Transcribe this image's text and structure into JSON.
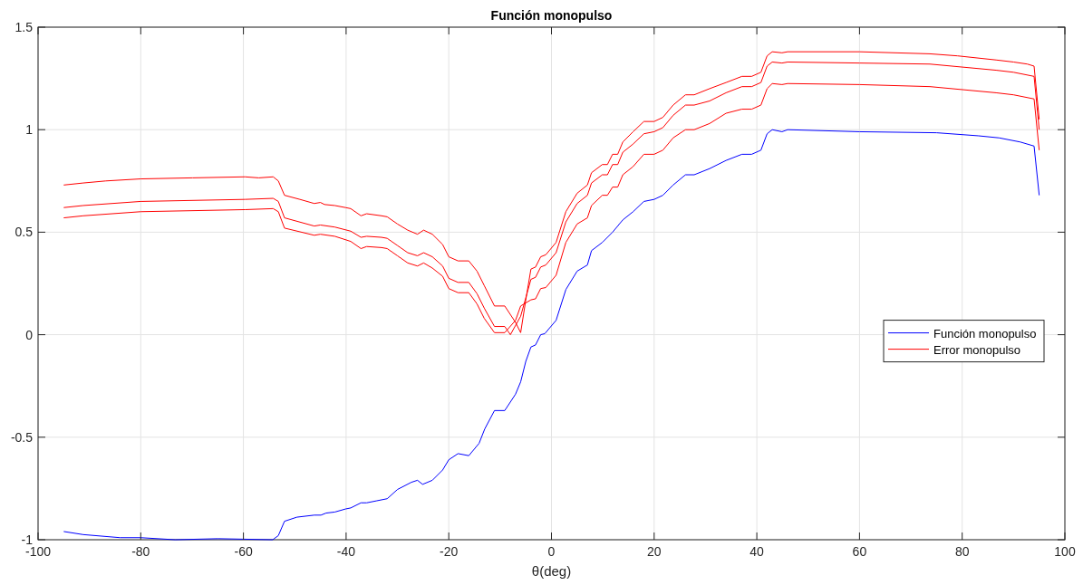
{
  "chart_data": {
    "type": "line",
    "title": "Función monopulso",
    "xlabel": "θ(deg)",
    "xlim": [
      -100,
      100
    ],
    "xticks": [
      -100,
      -80,
      -60,
      -40,
      -20,
      0,
      20,
      40,
      60,
      80,
      100
    ],
    "ylim": [
      -1,
      1.5
    ],
    "yticks": [
      -1,
      -0.5,
      0,
      0.5,
      1,
      1.5
    ],
    "grid": true,
    "legend": "right",
    "series": [
      {
        "name": "Función monopulso",
        "color": "#0000ff",
        "x": [
          -95,
          -91.2,
          -84,
          -80,
          -73.3,
          -65,
          -54.3,
          -53.2,
          -52,
          -49.6,
          -46.2,
          -44.9,
          -43.9,
          -42.2,
          -40.1,
          -39.1,
          -37.1,
          -36,
          -34,
          -32,
          -30,
          -27.3,
          -26.1,
          -25.1,
          -23.2,
          -21.2,
          -20,
          -18.2,
          -16.1,
          -14.1,
          -13,
          -11.1,
          -9.1,
          -7,
          -6,
          -5,
          -4,
          -3.1,
          -2.1,
          -1.3,
          0.9,
          2.8,
          5,
          7,
          7.8,
          9.9,
          11.9,
          13.9,
          15.9,
          18,
          20,
          21.7,
          23.7,
          26.1,
          27.8,
          30.8,
          34,
          37.1,
          39,
          40.8,
          42,
          43,
          44.9,
          46,
          60,
          75,
          83.2,
          87.2,
          91.3,
          94,
          95
        ],
        "values": [
          -0.96,
          -0.975,
          -0.99,
          -0.99,
          -1,
          -0.995,
          -1,
          -0.98,
          -0.91,
          -0.89,
          -0.88,
          -0.88,
          -0.87,
          -0.865,
          -0.85,
          -0.845,
          -0.82,
          -0.82,
          -0.81,
          -0.8,
          -0.755,
          -0.72,
          -0.71,
          -0.73,
          -0.71,
          -0.66,
          -0.61,
          -0.58,
          -0.59,
          -0.53,
          -0.46,
          -0.37,
          -0.37,
          -0.29,
          -0.23,
          -0.13,
          -0.06,
          -0.05,
          0,
          0.005,
          0.07,
          0.22,
          0.31,
          0.34,
          0.41,
          0.45,
          0.5,
          0.56,
          0.6,
          0.65,
          0.66,
          0.68,
          0.73,
          0.78,
          0.78,
          0.81,
          0.85,
          0.88,
          0.88,
          0.9,
          0.98,
          1,
          0.99,
          1,
          0.99,
          0.985,
          0.97,
          0.96,
          0.94,
          0.92,
          0.68
        ]
      },
      {
        "name": "Error monopulso",
        "color": "#ff0000",
        "x": [
          -95,
          -91.2,
          -86.8,
          -80,
          -69.9,
          -59.7,
          -57,
          -54.2,
          -53.2,
          -52,
          -49,
          -46.2,
          -45,
          -44.2,
          -42.2,
          -40.1,
          -39.1,
          -37.1,
          -36,
          -33.1,
          -32,
          -30,
          -28,
          -26.1,
          -24.9,
          -23.2,
          -21.2,
          -20,
          -18.2,
          -16.1,
          -14.5,
          -13.1,
          -11.1,
          -9.1,
          -7,
          -6,
          -5,
          -4,
          -3.1,
          -2.1,
          -1.1,
          0.9,
          2.8,
          5,
          7,
          7.8,
          9.9,
          10.9,
          11.9,
          12.9,
          13.9,
          15.9,
          18,
          20,
          21.7,
          23.7,
          26.1,
          27.8,
          30.8,
          34,
          37.1,
          39,
          40.8,
          42,
          43,
          44.9,
          46,
          60,
          73.7,
          79.1,
          86.6,
          90,
          92.7,
          94,
          95
        ],
        "values": [
          0.73,
          0.74,
          0.75,
          0.76,
          0.765,
          0.77,
          0.765,
          0.77,
          0.75,
          0.68,
          0.66,
          0.64,
          0.645,
          0.635,
          0.63,
          0.62,
          0.615,
          0.58,
          0.59,
          0.58,
          0.575,
          0.54,
          0.51,
          0.49,
          0.51,
          0.49,
          0.44,
          0.38,
          0.36,
          0.36,
          0.31,
          0.24,
          0.14,
          0.14,
          0.06,
          0.01,
          0.17,
          0.32,
          0.33,
          0.38,
          0.39,
          0.45,
          0.6,
          0.69,
          0.73,
          0.79,
          0.83,
          0.83,
          0.88,
          0.88,
          0.94,
          0.99,
          1.04,
          1.04,
          1.06,
          1.12,
          1.17,
          1.17,
          1.2,
          1.23,
          1.26,
          1.26,
          1.28,
          1.36,
          1.38,
          1.375,
          1.38,
          1.38,
          1.37,
          1.36,
          1.34,
          1.33,
          1.32,
          1.31,
          1.05
        ]
      },
      {
        "color": "#ff0000",
        "x": [
          -95,
          -91.2,
          -80,
          -59.7,
          -54.2,
          -53.2,
          -52,
          -46.2,
          -45,
          -42.2,
          -39.1,
          -37.1,
          -36,
          -33.1,
          -32,
          -30,
          -28,
          -26.1,
          -24.9,
          -23.2,
          -21.2,
          -20,
          -18.2,
          -16.1,
          -14.5,
          -13.1,
          -11.1,
          -9.1,
          -8,
          -6,
          -4,
          -3.1,
          -2.1,
          -1.1,
          0.9,
          2.8,
          5,
          7,
          7.8,
          9.9,
          10.9,
          11.9,
          12.9,
          13.9,
          15.9,
          18,
          20,
          21.7,
          23.7,
          26.1,
          27.8,
          30.8,
          34,
          37.1,
          39,
          40.8,
          42,
          43,
          44.9,
          46,
          60,
          73.7,
          86.6,
          90,
          94,
          95
        ],
        "values": [
          0.62,
          0.63,
          0.65,
          0.66,
          0.665,
          0.65,
          0.57,
          0.53,
          0.535,
          0.525,
          0.505,
          0.475,
          0.48,
          0.475,
          0.47,
          0.435,
          0.4,
          0.385,
          0.4,
          0.38,
          0.335,
          0.275,
          0.255,
          0.255,
          0.2,
          0.13,
          0.04,
          0.04,
          0,
          0.09,
          0.27,
          0.28,
          0.33,
          0.34,
          0.4,
          0.55,
          0.64,
          0.68,
          0.74,
          0.78,
          0.78,
          0.83,
          0.83,
          0.89,
          0.93,
          0.98,
          0.99,
          1.01,
          1.07,
          1.12,
          1.12,
          1.14,
          1.18,
          1.21,
          1.21,
          1.23,
          1.31,
          1.33,
          1.325,
          1.33,
          1.325,
          1.32,
          1.29,
          1.28,
          1.26,
          1
        ]
      },
      {
        "color": "#ff0000",
        "x": [
          -95,
          -91.2,
          -80,
          -59.7,
          -54.2,
          -53.2,
          -52,
          -46.2,
          -45,
          -42.2,
          -39.1,
          -37.1,
          -36,
          -33.1,
          -32,
          -30,
          -28,
          -26.1,
          -24.9,
          -23.2,
          -21.2,
          -20,
          -18.2,
          -16.1,
          -14.5,
          -13.1,
          -11.1,
          -9.1,
          -7,
          -6,
          -4,
          -3.1,
          -2.1,
          -1.1,
          0.9,
          2.8,
          5,
          7,
          7.8,
          9.9,
          10.9,
          11.9,
          12.9,
          13.9,
          15.9,
          18,
          20,
          21.7,
          23.7,
          26.1,
          27.8,
          30.8,
          34,
          37.1,
          39,
          40.8,
          42,
          43,
          44.9,
          46,
          60,
          73.7,
          86.6,
          90,
          94,
          95
        ],
        "values": [
          0.57,
          0.58,
          0.6,
          0.61,
          0.615,
          0.6,
          0.52,
          0.485,
          0.49,
          0.48,
          0.455,
          0.42,
          0.43,
          0.425,
          0.42,
          0.385,
          0.35,
          0.335,
          0.35,
          0.325,
          0.285,
          0.225,
          0.205,
          0.205,
          0.15,
          0.08,
          0.01,
          0.01,
          0.07,
          0.14,
          0.17,
          0.175,
          0.225,
          0.23,
          0.29,
          0.45,
          0.54,
          0.57,
          0.63,
          0.68,
          0.68,
          0.72,
          0.72,
          0.78,
          0.82,
          0.88,
          0.88,
          0.9,
          0.96,
          1,
          1,
          1.03,
          1.08,
          1.1,
          1.1,
          1.12,
          1.2,
          1.225,
          1.22,
          1.225,
          1.22,
          1.21,
          1.18,
          1.17,
          1.15,
          0.9
        ]
      }
    ]
  }
}
